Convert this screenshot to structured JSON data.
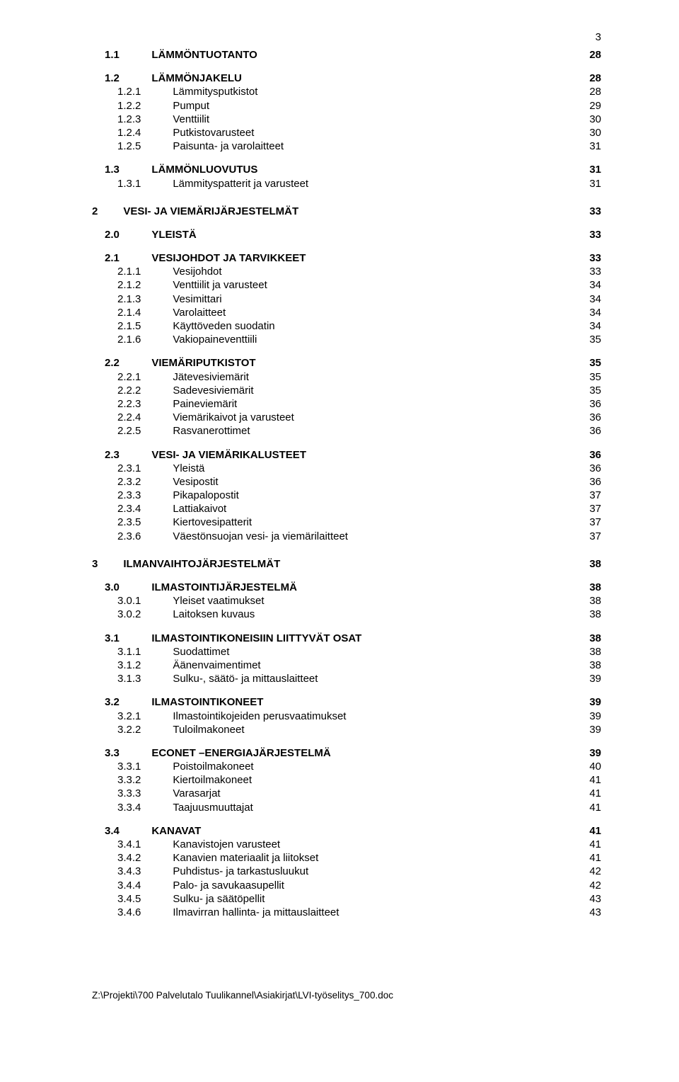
{
  "page_number": "3",
  "footer": "Z:\\Projekti\\700 Palvelutalo Tuulikannel\\Asiakirjat\\LVI-työselitys_700.doc",
  "toc": [
    {
      "level": 1,
      "num": "1.1",
      "title": "LÄMMÖNTUOTANTO",
      "pg": "28",
      "bold": true,
      "gap": "lg"
    },
    {
      "level": 1,
      "num": "1.2",
      "title": "LÄMMÖNJAKELU",
      "pg": "28",
      "bold": true,
      "gap": "md"
    },
    {
      "level": 2,
      "num": "1.2.1",
      "title": "Lämmitysputkistot",
      "pg": "28",
      "bold": false,
      "gap": "none"
    },
    {
      "level": 2,
      "num": "1.2.2",
      "title": "Pumput",
      "pg": "29",
      "bold": false,
      "gap": "none"
    },
    {
      "level": 2,
      "num": "1.2.3",
      "title": "Venttiilit",
      "pg": "30",
      "bold": false,
      "gap": "none"
    },
    {
      "level": 2,
      "num": "1.2.4",
      "title": "Putkistovarusteet",
      "pg": "30",
      "bold": false,
      "gap": "none"
    },
    {
      "level": 2,
      "num": "1.2.5",
      "title": "Paisunta- ja varolaitteet",
      "pg": "31",
      "bold": false,
      "gap": "none"
    },
    {
      "level": 1,
      "num": "1.3",
      "title": "LÄMMÖNLUOVUTUS",
      "pg": "31",
      "bold": true,
      "gap": "md"
    },
    {
      "level": 2,
      "num": "1.3.1",
      "title": "Lämmityspatterit ja varusteet",
      "pg": "31",
      "bold": false,
      "gap": "none"
    },
    {
      "level": 0,
      "num": "2",
      "title": "VESI- JA VIEMÄRIJÄRJESTELMÄT",
      "pg": "33",
      "bold": true,
      "gap": "lg"
    },
    {
      "level": 1,
      "num": "2.0",
      "title": "YLEISTÄ",
      "pg": "33",
      "bold": true,
      "gap": "md"
    },
    {
      "level": 1,
      "num": "2.1",
      "title": "VESIJOHDOT JA TARVIKKEET",
      "pg": "33",
      "bold": true,
      "gap": "md"
    },
    {
      "level": 2,
      "num": "2.1.1",
      "title": "Vesijohdot",
      "pg": "33",
      "bold": false,
      "gap": "none"
    },
    {
      "level": 2,
      "num": "2.1.2",
      "title": "Venttiilit ja varusteet",
      "pg": "34",
      "bold": false,
      "gap": "none"
    },
    {
      "level": 2,
      "num": "2.1.3",
      "title": "Vesimittari",
      "pg": "34",
      "bold": false,
      "gap": "none"
    },
    {
      "level": 2,
      "num": "2.1.4",
      "title": "Varolaitteet",
      "pg": "34",
      "bold": false,
      "gap": "none"
    },
    {
      "level": 2,
      "num": "2.1.5",
      "title": "Käyttöveden suodatin",
      "pg": "34",
      "bold": false,
      "gap": "none"
    },
    {
      "level": 2,
      "num": "2.1.6",
      "title": "Vakiopaineventtiili",
      "pg": "35",
      "bold": false,
      "gap": "none"
    },
    {
      "level": 1,
      "num": "2.2",
      "title": "VIEMÄRIPUTKISTOT",
      "pg": "35",
      "bold": true,
      "gap": "md"
    },
    {
      "level": 2,
      "num": "2.2.1",
      "title": "Jätevesiviemärit",
      "pg": "35",
      "bold": false,
      "gap": "none"
    },
    {
      "level": 2,
      "num": "2.2.2",
      "title": "Sadevesiviemärit",
      "pg": "35",
      "bold": false,
      "gap": "none"
    },
    {
      "level": 2,
      "num": "2.2.3",
      "title": "Paineviemärit",
      "pg": "36",
      "bold": false,
      "gap": "none"
    },
    {
      "level": 2,
      "num": "2.2.4",
      "title": "Viemärikaivot ja varusteet",
      "pg": "36",
      "bold": false,
      "gap": "none"
    },
    {
      "level": 2,
      "num": "2.2.5",
      "title": "Rasvanerottimet",
      "pg": "36",
      "bold": false,
      "gap": "none"
    },
    {
      "level": 1,
      "num": "2.3",
      "title": "VESI- JA VIEMÄRIKALUSTEET",
      "pg": "36",
      "bold": true,
      "gap": "md"
    },
    {
      "level": 2,
      "num": "2.3.1",
      "title": "Yleistä",
      "pg": "36",
      "bold": false,
      "gap": "none"
    },
    {
      "level": 2,
      "num": "2.3.2",
      "title": "Vesipostit",
      "pg": "36",
      "bold": false,
      "gap": "none"
    },
    {
      "level": 2,
      "num": "2.3.3",
      "title": "Pikapalopostit",
      "pg": "37",
      "bold": false,
      "gap": "none"
    },
    {
      "level": 2,
      "num": "2.3.4",
      "title": "Lattiakaivot",
      "pg": "37",
      "bold": false,
      "gap": "none"
    },
    {
      "level": 2,
      "num": "2.3.5",
      "title": "Kiertovesipatterit",
      "pg": "37",
      "bold": false,
      "gap": "none"
    },
    {
      "level": 2,
      "num": "2.3.6",
      "title": "Väestönsuojan vesi- ja viemärilaitteet",
      "pg": "37",
      "bold": false,
      "gap": "none"
    },
    {
      "level": 0,
      "num": "3",
      "title": "ILMANVAIHTOJÄRJESTELMÄT",
      "pg": "38",
      "bold": true,
      "gap": "lg"
    },
    {
      "level": 1,
      "num": "3.0",
      "title": "ILMASTOINTIJÄRJESTELMÄ",
      "pg": "38",
      "bold": true,
      "gap": "md"
    },
    {
      "level": 2,
      "num": "3.0.1",
      "title": "Yleiset vaatimukset",
      "pg": "38",
      "bold": false,
      "gap": "none"
    },
    {
      "level": 2,
      "num": "3.0.2",
      "title": "Laitoksen kuvaus",
      "pg": "38",
      "bold": false,
      "gap": "none"
    },
    {
      "level": 1,
      "num": "3.1",
      "title": "ILMASTOINTIKONEISIIN LIITTYVÄT OSAT",
      "pg": "38",
      "bold": true,
      "gap": "md"
    },
    {
      "level": 2,
      "num": "3.1.1",
      "title": "Suodattimet",
      "pg": "38",
      "bold": false,
      "gap": "none"
    },
    {
      "level": 2,
      "num": "3.1.2",
      "title": "Äänenvaimentimet",
      "pg": "38",
      "bold": false,
      "gap": "none"
    },
    {
      "level": 2,
      "num": "3.1.3",
      "title": "Sulku-, säätö- ja mittauslaitteet",
      "pg": "39",
      "bold": false,
      "gap": "none"
    },
    {
      "level": 1,
      "num": "3.2",
      "title": "ILMASTOINTIKONEET",
      "pg": "39",
      "bold": true,
      "gap": "md"
    },
    {
      "level": 2,
      "num": "3.2.1",
      "title": "Ilmastointikojeiden perusvaatimukset",
      "pg": "39",
      "bold": false,
      "gap": "none"
    },
    {
      "level": 2,
      "num": "3.2.2",
      "title": "Tuloilmakoneet",
      "pg": "39",
      "bold": false,
      "gap": "none"
    },
    {
      "level": 1,
      "num": "3.3",
      "title": "ECONET –ENERGIAJÄRJESTELMÄ",
      "pg": "39",
      "bold": true,
      "gap": "md"
    },
    {
      "level": 2,
      "num": "3.3.1",
      "title": "Poistoilmakoneet",
      "pg": "40",
      "bold": false,
      "gap": "none"
    },
    {
      "level": 2,
      "num": "3.3.2",
      "title": "Kiertoilmakoneet",
      "pg": "41",
      "bold": false,
      "gap": "none"
    },
    {
      "level": 2,
      "num": "3.3.3",
      "title": "Varasarjat",
      "pg": "41",
      "bold": false,
      "gap": "none"
    },
    {
      "level": 2,
      "num": "3.3.4",
      "title": "Taajuusmuuttajat",
      "pg": "41",
      "bold": false,
      "gap": "none"
    },
    {
      "level": 1,
      "num": "3.4",
      "title": "KANAVAT",
      "pg": "41",
      "bold": true,
      "gap": "md"
    },
    {
      "level": 2,
      "num": "3.4.1",
      "title": "Kanavistojen varusteet",
      "pg": "41",
      "bold": false,
      "gap": "none"
    },
    {
      "level": 2,
      "num": "3.4.2",
      "title": "Kanavien materiaalit ja liitokset",
      "pg": "41",
      "bold": false,
      "gap": "none"
    },
    {
      "level": 2,
      "num": "3.4.3",
      "title": "Puhdistus- ja tarkastusluukut",
      "pg": "42",
      "bold": false,
      "gap": "none"
    },
    {
      "level": 2,
      "num": "3.4.4",
      "title": "Palo- ja savukaasupellit",
      "pg": "42",
      "bold": false,
      "gap": "none"
    },
    {
      "level": 2,
      "num": "3.4.5",
      "title": "Sulku- ja säätöpellit",
      "pg": "43",
      "bold": false,
      "gap": "none"
    },
    {
      "level": 2,
      "num": "3.4.6",
      "title": "Ilmavirran hallinta- ja mittauslaitteet",
      "pg": "43",
      "bold": false,
      "gap": "none"
    }
  ]
}
